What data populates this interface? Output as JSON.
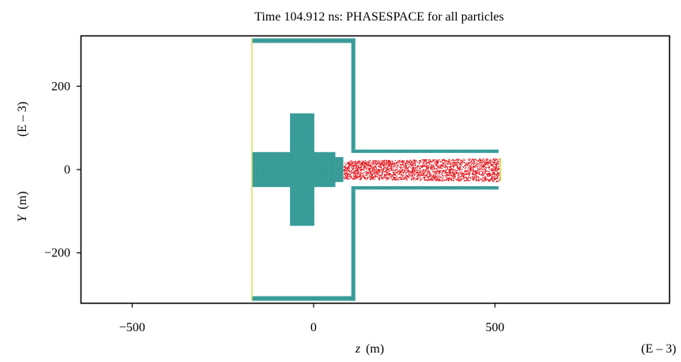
{
  "chart_data": {
    "type": "scatter",
    "title": "Time 104.912 ns: PHASESPACE for all particles",
    "xlabel": {
      "symbol": "z",
      "unit": "(m)",
      "exponent": "(E – 3)"
    },
    "ylabel": {
      "symbol": "Y",
      "unit": "(m)",
      "exponent": "(E – 3)"
    },
    "xlim": [
      -640,
      980
    ],
    "ylim": [
      -320,
      320
    ],
    "x_ticks": [
      {
        "value": -500,
        "label": "−500"
      },
      {
        "value": 0,
        "label": "0"
      },
      {
        "value": 500,
        "label": "500"
      }
    ],
    "y_ticks": [
      {
        "value": 200,
        "label": "200"
      },
      {
        "value": 0,
        "label": "0"
      },
      {
        "value": -200,
        "label": "−200"
      }
    ],
    "grid": false,
    "legend": "none",
    "geometry_regions": [
      {
        "name": "upper-wall-top",
        "x": [
          -170,
          115
        ],
        "y": [
          304,
          315
        ]
      },
      {
        "name": "upper-wall-right",
        "x": [
          104,
          115
        ],
        "y": [
          48,
          315
        ]
      },
      {
        "name": "upper-guide-top",
        "x": [
          104,
          510
        ],
        "y": [
          40,
          48
        ]
      },
      {
        "name": "lower-wall-bottom",
        "x": [
          -170,
          115
        ],
        "y": [
          -315,
          -304
        ]
      },
      {
        "name": "lower-wall-right",
        "x": [
          104,
          115
        ],
        "y": [
          -315,
          -48
        ]
      },
      {
        "name": "lower-guide-bottom",
        "x": [
          104,
          510
        ],
        "y": [
          -48,
          -40
        ]
      },
      {
        "name": "cathode-horizontal",
        "x": [
          -170,
          60
        ],
        "y": [
          -42,
          42
        ]
      },
      {
        "name": "cathode-vertical",
        "x": [
          -65,
          2
        ],
        "y": [
          -135,
          135
        ]
      },
      {
        "name": "cathode-tip",
        "x": [
          60,
          82
        ],
        "y": [
          -30,
          30
        ]
      }
    ],
    "particle_beam": {
      "name": "electron-beam",
      "x": [
        82,
        515
      ],
      "y_start": [
        -22,
        22
      ],
      "y_end": [
        -28,
        28
      ],
      "count": 2400
    },
    "emitter_edge": {
      "x": -170,
      "y": [
        -315,
        315
      ]
    },
    "colors": {
      "structure": "#3a9e9a",
      "structure_dark": "#2e8a86",
      "particles": "#e21f26",
      "emitter": "#d8e36a",
      "frame": "#000000"
    }
  }
}
